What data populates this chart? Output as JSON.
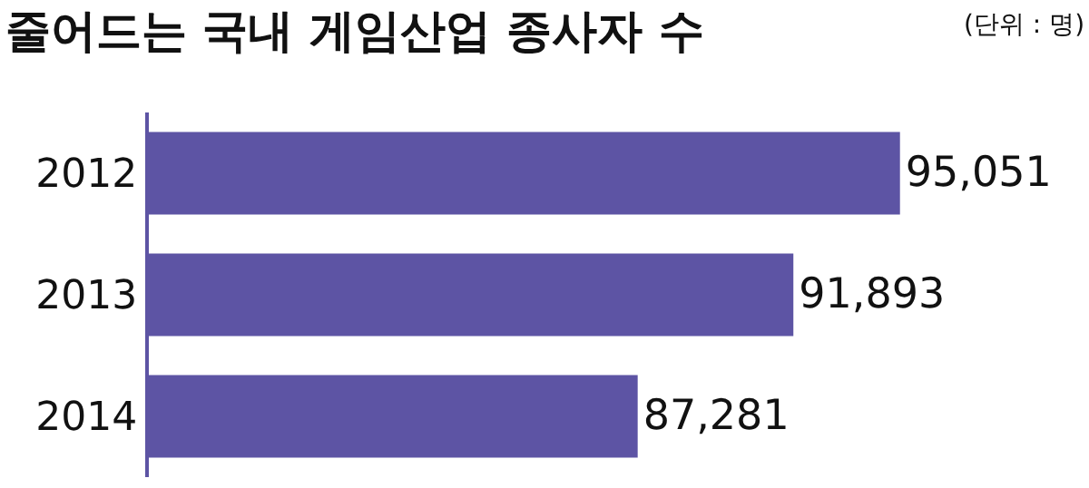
{
  "chart_data": {
    "type": "bar",
    "orientation": "horizontal",
    "title": "줄어드는 국내 게임산업 종사자 수",
    "subtitle": "(단위 : 명)",
    "categories": [
      "2012",
      "2013",
      "2014"
    ],
    "values": [
      95051,
      91893,
      87281
    ],
    "value_labels": [
      "95,051",
      "91,893",
      "87,281"
    ],
    "color": "#5d54a4",
    "xlim": [
      72800,
      100650
    ],
    "tick_labels": "y",
    "legend": false
  }
}
